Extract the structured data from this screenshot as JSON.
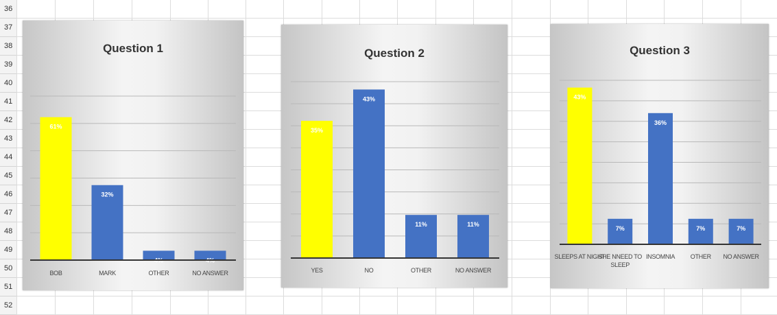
{
  "sheet": {
    "row_numbers": [
      "36",
      "37",
      "38",
      "39",
      "40",
      "41",
      "42",
      "43",
      "44",
      "45",
      "46",
      "47",
      "48",
      "49",
      "50",
      "51",
      "52"
    ]
  },
  "colors": {
    "highlight": "#ffff00",
    "bar": "#4472c4",
    "gridline": "#b8b8b8",
    "axis": "#333333"
  },
  "chart_data": [
    {
      "type": "bar",
      "title": "Question 1",
      "categories": [
        [
          "BOB"
        ],
        [
          "MARK"
        ],
        [
          "OTHER"
        ],
        [
          "NO ANSWER"
        ]
      ],
      "values": [
        61,
        32,
        4,
        4
      ],
      "data_labels": [
        "61%",
        "32%",
        "4%",
        "4%"
      ],
      "highlight_index": 0,
      "ylim": [
        0,
        70
      ],
      "grid": true
    },
    {
      "type": "bar",
      "title": "Question 2",
      "categories": [
        [
          "YES"
        ],
        [
          "NO"
        ],
        [
          "OTHER"
        ],
        [
          "NO ANSWER"
        ]
      ],
      "values": [
        35,
        43,
        11,
        11
      ],
      "data_labels": [
        "35%",
        "43%",
        "11%",
        "11%"
      ],
      "highlight_index": 0,
      "ylim": [
        0,
        45
      ],
      "grid": true
    },
    {
      "type": "bar",
      "title": "Question 3",
      "categories": [
        [
          "SLEEPS AT NIGHT"
        ],
        [
          "SHE NNEED TO",
          "SLEEP"
        ],
        [
          "INSOMNIA"
        ],
        [
          "OTHER"
        ],
        [
          "NO ANSWER"
        ]
      ],
      "values": [
        43,
        7,
        36,
        7,
        7
      ],
      "data_labels": [
        "43%",
        "7%",
        "36%",
        "7%",
        "7%"
      ],
      "highlight_index": 0,
      "ylim": [
        0,
        45
      ],
      "grid": true
    }
  ]
}
